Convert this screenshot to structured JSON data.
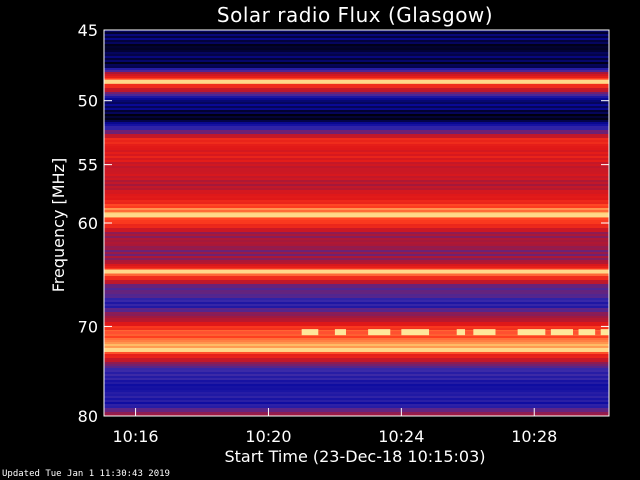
{
  "chart_data": {
    "type": "heatmap",
    "title": "Solar radio Flux (Glasgow)",
    "xlabel": "Start Time (23-Dec-18 10:15:03)",
    "ylabel": "Frequency [MHz]",
    "x_range_minutes": [
      "10:15:03",
      "10:30:15"
    ],
    "x_ticks": [
      "10:16",
      "10:20",
      "10:24",
      "10:28"
    ],
    "y_range": [
      45,
      80
    ],
    "y_ticks": [
      45,
      50,
      55,
      60,
      70,
      80
    ],
    "y_scale": "log",
    "colormap": [
      "#000010",
      "#0a0aa0",
      "#3a2aa8",
      "#a81838",
      "#e01818",
      "#ff4020",
      "#ffd070"
    ],
    "frequency_profile": [
      {
        "f": 45.0,
        "level": 0.1
      },
      {
        "f": 46.0,
        "level": 0.05
      },
      {
        "f": 47.5,
        "level": 0.08
      },
      {
        "f": 48.6,
        "level": 0.98
      },
      {
        "f": 49.2,
        "level": 0.55
      },
      {
        "f": 50.0,
        "level": 0.12
      },
      {
        "f": 51.5,
        "level": 0.03
      },
      {
        "f": 52.3,
        "level": 0.4
      },
      {
        "f": 53.0,
        "level": 0.72
      },
      {
        "f": 55.0,
        "level": 0.62
      },
      {
        "f": 57.0,
        "level": 0.55
      },
      {
        "f": 59.3,
        "level": 0.96
      },
      {
        "f": 61.0,
        "level": 0.5
      },
      {
        "f": 63.5,
        "level": 0.45
      },
      {
        "f": 64.5,
        "level": 0.95
      },
      {
        "f": 66.0,
        "level": 0.4
      },
      {
        "f": 68.0,
        "level": 0.28
      },
      {
        "f": 70.6,
        "level": 0.85
      },
      {
        "f": 72.5,
        "level": 0.96
      },
      {
        "f": 74.0,
        "level": 0.42
      },
      {
        "f": 76.0,
        "level": 0.22
      },
      {
        "f": 78.5,
        "level": 0.25
      },
      {
        "f": 80.0,
        "level": 0.48
      }
    ],
    "bright_bands_mhz": [
      48.6,
      59.3,
      64.5,
      72.5
    ],
    "burst_band": {
      "f": 70.6,
      "spans": [
        [
          "10:21:00",
          "10:21:30"
        ],
        [
          "10:22:00",
          "10:22:20"
        ],
        [
          "10:23:00",
          "10:23:40"
        ],
        [
          "10:24:00",
          "10:24:50"
        ],
        [
          "10:25:40",
          "10:25:55"
        ],
        [
          "10:26:10",
          "10:26:50"
        ],
        [
          "10:27:30",
          "10:28:20"
        ],
        [
          "10:28:30",
          "10:29:10"
        ],
        [
          "10:29:20",
          "10:29:50"
        ],
        [
          "10:30:00",
          "10:30:15"
        ]
      ]
    }
  },
  "footer": {
    "updated": "Updated Tue Jan  1 11:30:43 2019"
  }
}
